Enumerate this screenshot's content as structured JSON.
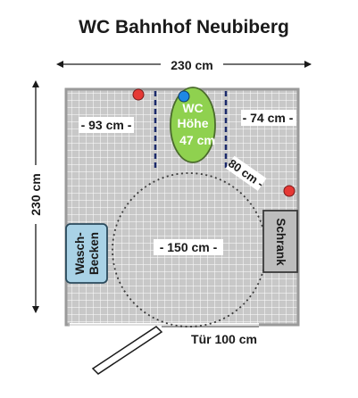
{
  "title": "WC Bahnhof Neubiberg",
  "dimensions": {
    "width": "230 cm",
    "height": "230 cm",
    "left_gap": "- 93 cm -",
    "right_gap": "- 74 cm -",
    "diagonal": "80 cm -",
    "turning_circle": "- 150 cm -",
    "door": "Tür 100 cm"
  },
  "wc": {
    "line1": "WC",
    "line2": "Höhe",
    "line3": "47 cm"
  },
  "sink": {
    "line1": "Wasch-",
    "line2": "Becken"
  },
  "cabinet": {
    "label": "Schrank"
  },
  "colors": {
    "floor": "#c8c8c8",
    "wall": "#9a9a9a",
    "wc_fill": "#8fd14f",
    "sink_fill": "#a9d2e6",
    "cabinet_fill": "#bdbdbd",
    "dashed_lines": "#1b2a6b",
    "red_marker": "#e53935",
    "blue_marker": "#1e88e5"
  }
}
